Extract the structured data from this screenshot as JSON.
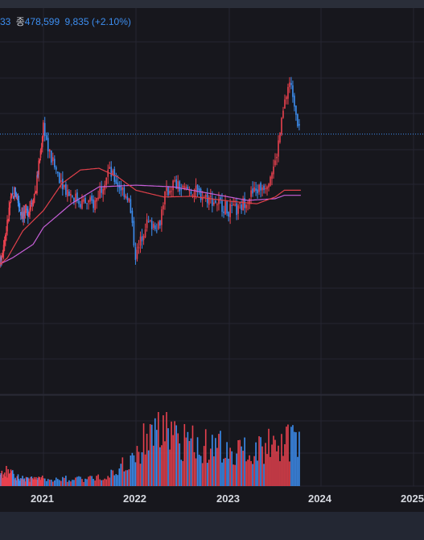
{
  "header": {
    "close_fragment": "33",
    "close_label": "종",
    "close_value": "478,599",
    "change_value": "9,835",
    "change_pct": "(+2.10%)"
  },
  "colors": {
    "up": "#e8414e",
    "down": "#3d8ef0",
    "ma_short": "#e0404a",
    "ma_long": "#c75fd8",
    "grid": "#262631",
    "price_line": "#3d8ef0"
  },
  "chart_data": {
    "type": "candlestick",
    "x_axis": {
      "tick_labels": [
        "2021",
        "2022",
        "2023",
        "2024",
        "2025"
      ]
    },
    "y_range": [
      0,
      1000
    ],
    "current_price_level": 746,
    "weekly_close_estimates": [
      [
        0.0,
        320
      ],
      [
        0.1,
        360
      ],
      [
        0.2,
        400
      ],
      [
        0.3,
        480
      ],
      [
        0.35,
        540
      ],
      [
        0.45,
        580
      ],
      [
        0.55,
        520
      ],
      [
        0.65,
        500
      ],
      [
        0.75,
        540
      ],
      [
        0.85,
        580
      ],
      [
        0.9,
        640
      ],
      [
        0.95,
        700
      ],
      [
        1.0,
        780
      ],
      [
        1.05,
        700
      ],
      [
        1.1,
        660
      ],
      [
        1.25,
        580
      ],
      [
        1.4,
        545
      ],
      [
        1.55,
        540
      ],
      [
        1.7,
        640
      ],
      [
        1.8,
        600
      ],
      [
        1.92,
        560
      ],
      [
        2.0,
        380
      ],
      [
        2.1,
        480
      ],
      [
        2.25,
        480
      ],
      [
        2.3,
        560
      ],
      [
        2.4,
        600
      ],
      [
        2.5,
        580
      ],
      [
        2.6,
        580
      ],
      [
        2.75,
        560
      ],
      [
        2.9,
        540
      ],
      [
        3.0,
        520
      ],
      [
        3.1,
        520
      ],
      [
        3.2,
        560
      ],
      [
        3.3,
        580
      ],
      [
        3.4,
        600
      ],
      [
        3.5,
        660
      ],
      [
        3.6,
        830
      ],
      [
        3.65,
        900
      ],
      [
        3.7,
        860
      ],
      [
        3.75,
        780
      ]
    ],
    "ma_short_estimates": [
      [
        0.0,
        340
      ],
      [
        0.3,
        380
      ],
      [
        0.6,
        460
      ],
      [
        1.0,
        520
      ],
      [
        1.2,
        600
      ],
      [
        1.4,
        640
      ],
      [
        1.6,
        645
      ],
      [
        1.8,
        620
      ],
      [
        2.0,
        580
      ],
      [
        2.3,
        560
      ],
      [
        2.6,
        562
      ],
      [
        3.0,
        548
      ],
      [
        3.3,
        540
      ],
      [
        3.5,
        560
      ],
      [
        3.6,
        580
      ]
    ],
    "ma_long_estimates": [
      [
        0.0,
        350
      ],
      [
        0.4,
        380
      ],
      [
        0.8,
        420
      ],
      [
        1.0,
        470
      ],
      [
        1.3,
        540
      ],
      [
        1.6,
        590
      ],
      [
        2.0,
        595
      ],
      [
        2.4,
        590
      ],
      [
        2.8,
        570
      ],
      [
        3.2,
        550
      ],
      [
        3.5,
        555
      ],
      [
        3.6,
        565
      ]
    ],
    "volume_relative_estimates": [
      [
        0.0,
        0.15
      ],
      [
        0.3,
        0.2
      ],
      [
        0.6,
        0.1
      ],
      [
        1.0,
        0.1
      ],
      [
        1.5,
        0.1
      ],
      [
        1.8,
        0.2
      ],
      [
        2.0,
        0.45
      ],
      [
        2.2,
        0.85
      ],
      [
        2.5,
        0.6
      ],
      [
        3.0,
        0.5
      ],
      [
        3.5,
        0.55
      ],
      [
        3.7,
        0.6
      ]
    ]
  }
}
